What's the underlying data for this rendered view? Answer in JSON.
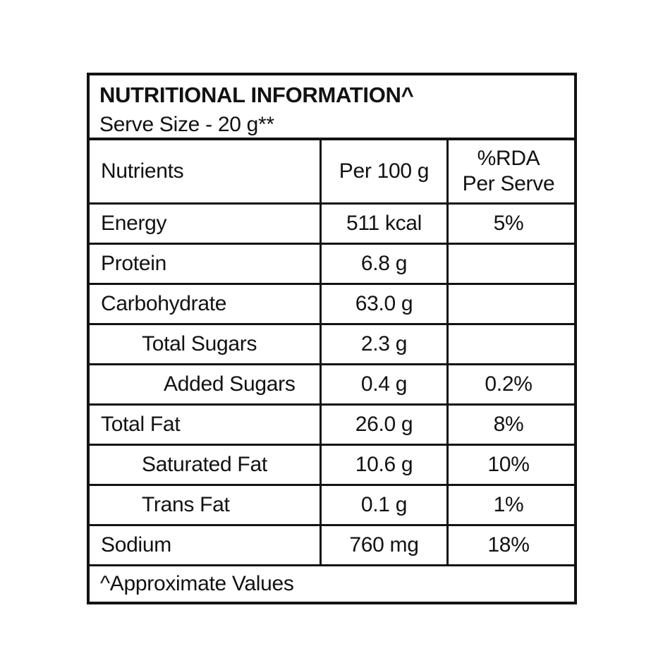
{
  "label": {
    "title": "NUTRITIONAL INFORMATION^",
    "serve_size": "Serve Size - 20 g**",
    "columns": {
      "nutrients": "Nutrients",
      "per_100g": "Per 100 g",
      "rda_line1": "%RDA",
      "rda_line2": "Per Serve"
    },
    "rows": [
      {
        "nutrient": "Energy",
        "per_100g": "511 kcal",
        "rda_per_serve": "5%",
        "indent": 0
      },
      {
        "nutrient": "Protein",
        "per_100g": "6.8 g",
        "rda_per_serve": "",
        "indent": 0
      },
      {
        "nutrient": "Carbohydrate",
        "per_100g": "63.0 g",
        "rda_per_serve": "",
        "indent": 0
      },
      {
        "nutrient": "Total Sugars",
        "per_100g": "2.3 g",
        "rda_per_serve": "",
        "indent": 1
      },
      {
        "nutrient": "Added Sugars",
        "per_100g": "0.4 g",
        "rda_per_serve": "0.2%",
        "indent": 2
      },
      {
        "nutrient": "Total Fat",
        "per_100g": "26.0 g",
        "rda_per_serve": "8%",
        "indent": 0
      },
      {
        "nutrient": "Saturated Fat",
        "per_100g": "10.6 g",
        "rda_per_serve": "10%",
        "indent": 1
      },
      {
        "nutrient": "Trans Fat",
        "per_100g": "0.1 g",
        "rda_per_serve": "1%",
        "indent": 1
      },
      {
        "nutrient": "Sodium",
        "per_100g": "760 mg",
        "rda_per_serve": "18%",
        "indent": 0
      }
    ],
    "footnote": "^Approximate Values"
  },
  "colors": {
    "border": "#121212",
    "text": "#121212",
    "background": "#ffffff"
  }
}
